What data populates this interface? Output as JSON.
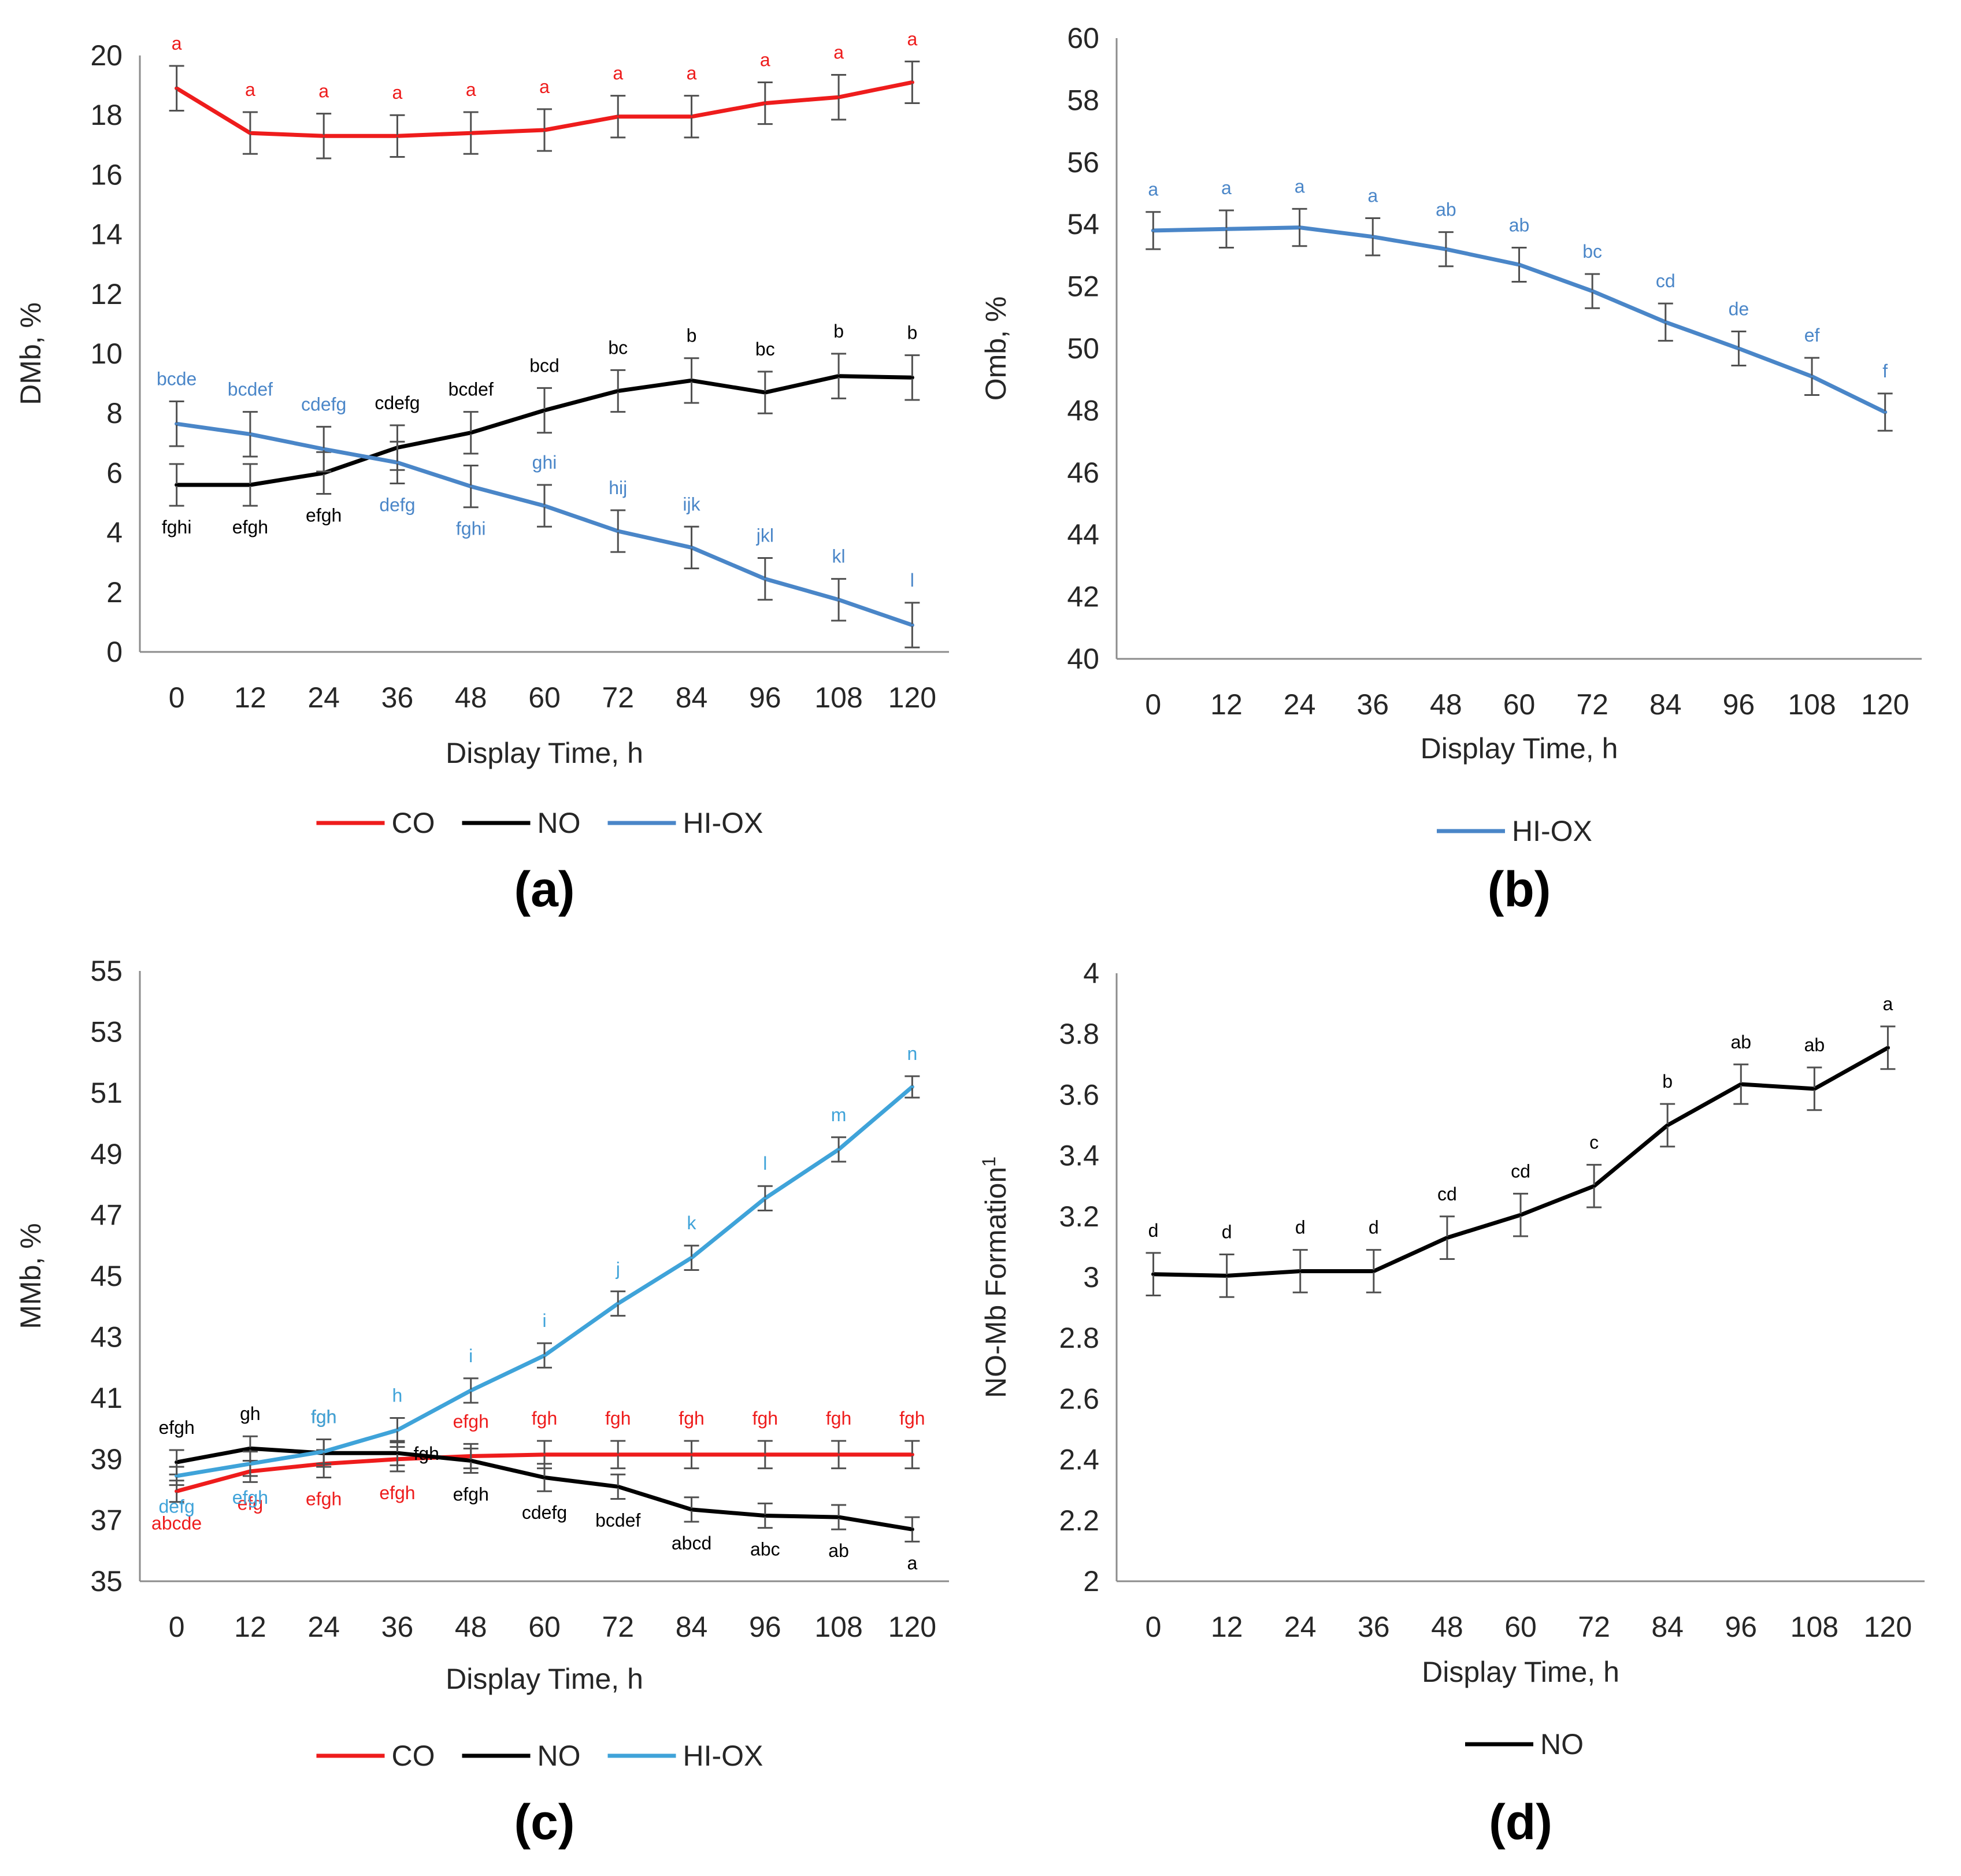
{
  "chart_data": [
    {
      "type": "line",
      "panel_label": "(a)",
      "xlabel": "Display Time, h",
      "ylabel": "DMb, %",
      "x": [
        0,
        12,
        24,
        36,
        48,
        60,
        72,
        84,
        96,
        108,
        120
      ],
      "ylim": [
        0,
        20
      ],
      "yticks": [
        0,
        2,
        4,
        6,
        8,
        10,
        12,
        14,
        16,
        18,
        20
      ],
      "series": [
        {
          "name": "CO",
          "color": "#ee1c1c",
          "values": [
            18.9,
            17.4,
            17.3,
            17.3,
            17.4,
            17.5,
            17.95,
            17.95,
            18.4,
            18.6,
            19.1
          ],
          "errors": [
            0.75,
            0.7,
            0.75,
            0.7,
            0.7,
            0.7,
            0.7,
            0.7,
            0.7,
            0.75,
            0.7
          ],
          "letters": [
            "a",
            "a",
            "a",
            "a",
            "a",
            "a",
            "a",
            "a",
            "a",
            "a",
            "a"
          ],
          "letters_pos": "above"
        },
        {
          "name": "NO",
          "color": "#000000",
          "values": [
            5.6,
            5.6,
            6.0,
            6.85,
            7.35,
            8.1,
            8.75,
            9.1,
            8.7,
            9.25,
            9.2
          ],
          "errors": [
            0.7,
            0.7,
            0.7,
            0.75,
            0.7,
            0.75,
            0.7,
            0.75,
            0.7,
            0.75,
            0.75
          ],
          "letters": [
            "fghi",
            "efgh",
            "efgh",
            "cdefg",
            "bcdef",
            "bcd",
            "bc",
            "b",
            "bc",
            "b",
            "b"
          ],
          "letters_pos": [
            "below",
            "below",
            "below",
            "above",
            "above",
            "above",
            "above",
            "above",
            "above",
            "above",
            "above"
          ]
        },
        {
          "name": "HI-OX",
          "color": "#4a86c8",
          "values": [
            7.65,
            7.3,
            6.8,
            6.35,
            5.55,
            4.9,
            4.05,
            3.5,
            2.45,
            1.75,
            0.9
          ],
          "errors": [
            0.75,
            0.75,
            0.75,
            0.7,
            0.7,
            0.7,
            0.7,
            0.7,
            0.7,
            0.7,
            0.75
          ],
          "letters": [
            "bcde",
            "bcdef",
            "cdefg",
            "defg",
            "fghi",
            "ghi",
            "hij",
            "ijk",
            "jkl",
            "kl",
            "l"
          ],
          "letters_pos": [
            "above",
            "above",
            "above",
            "below",
            "below",
            "above",
            "above",
            "above",
            "above",
            "above",
            "above"
          ]
        }
      ],
      "legend": [
        "CO",
        "NO",
        "HI-OX"
      ]
    },
    {
      "type": "line",
      "panel_label": "(b)",
      "xlabel": "Display Time, h",
      "ylabel": "Omb, %",
      "x": [
        0,
        12,
        24,
        36,
        48,
        60,
        72,
        84,
        96,
        108,
        120
      ],
      "ylim": [
        40,
        60
      ],
      "yticks": [
        40,
        42,
        44,
        46,
        48,
        50,
        52,
        54,
        56,
        58,
        60
      ],
      "series": [
        {
          "name": "HI-OX",
          "color": "#4a86c8",
          "values": [
            53.8,
            53.85,
            53.9,
            53.6,
            53.2,
            52.7,
            51.85,
            50.85,
            50.0,
            49.1,
            47.95
          ],
          "errors": [
            0.6,
            0.6,
            0.6,
            0.6,
            0.55,
            0.55,
            0.55,
            0.6,
            0.55,
            0.6,
            0.6
          ],
          "letters": [
            "a",
            "a",
            "a",
            "a",
            "ab",
            "ab",
            "bc",
            "cd",
            "de",
            "ef",
            "f"
          ],
          "letters_pos": "above"
        }
      ],
      "legend": [
        "HI-OX"
      ]
    },
    {
      "type": "line",
      "panel_label": "(c)",
      "xlabel": "Display Time, h",
      "ylabel": "MMb, %",
      "x": [
        0,
        12,
        24,
        36,
        48,
        60,
        72,
        84,
        96,
        108,
        120
      ],
      "ylim": [
        35,
        55
      ],
      "yticks": [
        35,
        37,
        39,
        41,
        43,
        45,
        47,
        49,
        51,
        53,
        55
      ],
      "series": [
        {
          "name": "CO",
          "color": "#ee1c1c",
          "values": [
            37.95,
            38.6,
            38.85,
            39.0,
            39.1,
            39.15,
            39.15,
            39.15,
            39.15,
            39.15,
            39.15
          ],
          "errors": [
            0.35,
            0.35,
            0.45,
            0.4,
            0.4,
            0.45,
            0.45,
            0.45,
            0.45,
            0.45,
            0.45
          ],
          "letters": [
            "abcde",
            "efg",
            "efgh",
            "efgh",
            "efgh",
            "fgh",
            "fgh",
            "fgh",
            "fgh",
            "fgh",
            "fgh"
          ],
          "letters_pos": [
            "below",
            "below",
            "below",
            "below",
            "above",
            "above",
            "above",
            "above",
            "above",
            "above",
            "above"
          ]
        },
        {
          "name": "NO",
          "color": "#000000",
          "values": [
            38.9,
            39.35,
            39.2,
            39.2,
            38.95,
            38.4,
            38.1,
            37.35,
            37.15,
            37.1,
            36.7
          ],
          "errors": [
            0.4,
            0.4,
            0.45,
            0.4,
            0.4,
            0.45,
            0.4,
            0.4,
            0.4,
            0.4,
            0.4
          ],
          "letters": [
            "efgh",
            "gh",
            "fgh",
            "fgh",
            "efgh",
            "cdefg",
            "bcdef",
            "abcd",
            "abc",
            "ab",
            "a"
          ],
          "letters_pos": [
            "above",
            "above",
            "above",
            "right",
            "below",
            "below",
            "below",
            "below",
            "below",
            "below",
            "below"
          ]
        },
        {
          "name": "HI-OX",
          "color": "#3fa3d9",
          "values": [
            38.45,
            38.85,
            39.25,
            39.95,
            41.25,
            42.4,
            44.1,
            45.6,
            47.55,
            49.15,
            51.2
          ],
          "errors": [
            0.3,
            0.4,
            0.4,
            0.4,
            0.4,
            0.4,
            0.4,
            0.4,
            0.4,
            0.4,
            0.35
          ],
          "letters": [
            "defg",
            "efgh",
            "fgh",
            "h",
            "i",
            "i",
            "j",
            "k",
            "l",
            "m",
            "n"
          ],
          "letters_pos": [
            "below",
            "below",
            "above",
            "above",
            "above",
            "above",
            "above",
            "above",
            "above",
            "above",
            "above"
          ]
        }
      ],
      "legend": [
        "CO",
        "NO",
        "HI-OX"
      ]
    },
    {
      "type": "line",
      "panel_label": "(d)",
      "xlabel": "Display Time, h",
      "ylabel": "NO-Mb Formation",
      "ylabel_superscript": "1",
      "x": [
        0,
        12,
        24,
        36,
        48,
        60,
        72,
        84,
        96,
        108,
        120
      ],
      "ylim": [
        2,
        4
      ],
      "yticks": [
        2,
        2.2,
        2.4,
        2.6,
        2.8,
        3,
        3.2,
        3.4,
        3.6,
        3.8,
        4
      ],
      "series": [
        {
          "name": "NO",
          "color": "#000000",
          "values": [
            3.01,
            3.005,
            3.02,
            3.02,
            3.13,
            3.205,
            3.3,
            3.5,
            3.635,
            3.62,
            3.755
          ],
          "errors": [
            0.07,
            0.07,
            0.07,
            0.07,
            0.07,
            0.07,
            0.07,
            0.07,
            0.065,
            0.07,
            0.07
          ],
          "letters": [
            "d",
            "d",
            "d",
            "d",
            "cd",
            "cd",
            "c",
            "b",
            "ab",
            "ab",
            "a"
          ],
          "letters_pos": "above"
        }
      ],
      "legend": [
        "NO"
      ]
    }
  ]
}
